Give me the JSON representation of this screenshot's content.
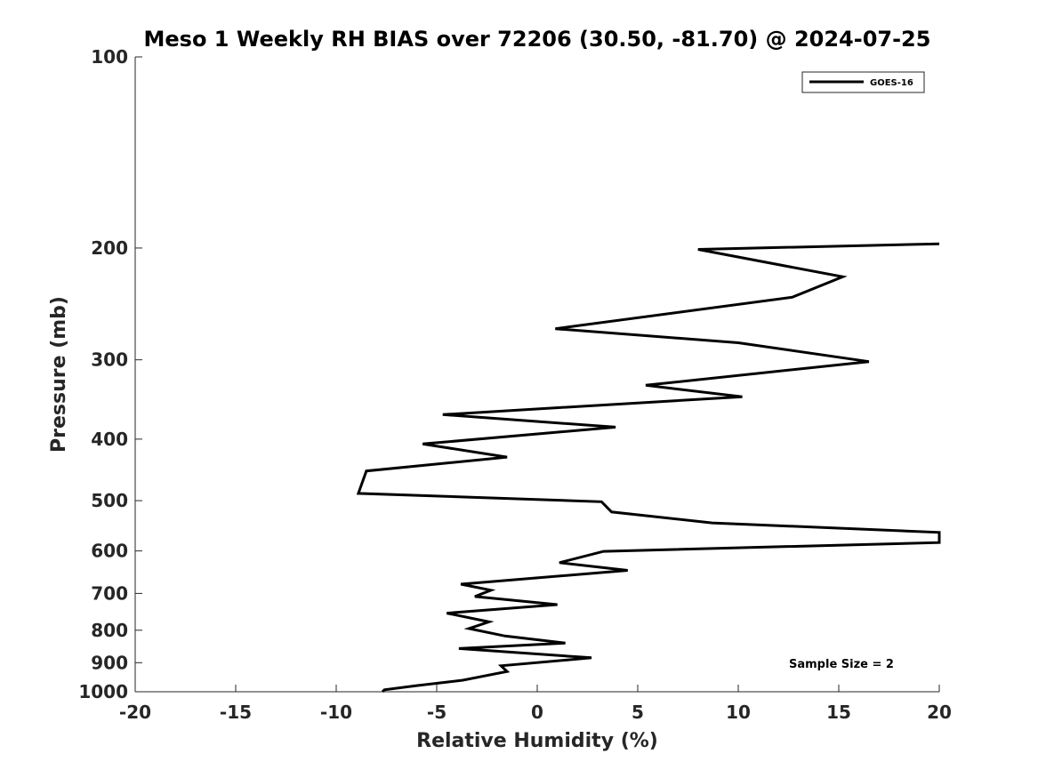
{
  "chart_data": {
    "type": "line",
    "title": "Meso 1 Weekly RH BIAS over 72206 (30.50, -81.70) @ 2024-07-25",
    "xlabel": "Relative Humidity (%)",
    "ylabel": "Pressure (mb)",
    "xlim": [
      -20,
      20
    ],
    "ylim": [
      100,
      1000
    ],
    "yscale": "log",
    "y_reversed": true,
    "x_ticks": [
      "-20",
      "-15",
      "-10",
      "-5",
      "0",
      "5",
      "10",
      "15",
      "20"
    ],
    "y_ticks": [
      "100",
      "200",
      "300",
      "400",
      "500",
      "600",
      "700",
      "800",
      "900",
      "1000"
    ],
    "legend": {
      "position": "top-right",
      "entries": [
        "GOES-16"
      ]
    },
    "annotation": "Sample Size = 2",
    "series": [
      {
        "name": "GOES-16",
        "color": "#000000",
        "points": [
          [
            20.0,
            197
          ],
          [
            8.0,
            201
          ],
          [
            15.2,
            222
          ],
          [
            12.7,
            239
          ],
          [
            0.9,
            268
          ],
          [
            10.0,
            282
          ],
          [
            16.5,
            302
          ],
          [
            5.4,
            329
          ],
          [
            10.2,
            343
          ],
          [
            -4.7,
            366
          ],
          [
            3.9,
            383
          ],
          [
            -5.7,
            407
          ],
          [
            -1.5,
            427
          ],
          [
            -8.5,
            449
          ],
          [
            -8.9,
            487
          ],
          [
            3.2,
            502
          ],
          [
            3.7,
            521
          ],
          [
            8.7,
            542
          ],
          [
            20.0,
            561
          ],
          [
            20.0,
            582
          ],
          [
            3.3,
            601
          ],
          [
            1.1,
            626
          ],
          [
            4.5,
            644
          ],
          [
            -3.8,
            677
          ],
          [
            -2.3,
            692
          ],
          [
            -3.1,
            708
          ],
          [
            1.0,
            729
          ],
          [
            -4.5,
            752
          ],
          [
            -2.4,
            776
          ],
          [
            -3.4,
            795
          ],
          [
            -1.6,
            817
          ],
          [
            1.4,
            838
          ],
          [
            -3.9,
            855
          ],
          [
            2.7,
            884
          ],
          [
            -1.8,
            910
          ],
          [
            -1.5,
            929
          ],
          [
            -3.7,
            959
          ],
          [
            -6.0,
            978
          ],
          [
            -7.6,
            993
          ],
          [
            -7.7,
            1000
          ]
        ]
      }
    ]
  }
}
